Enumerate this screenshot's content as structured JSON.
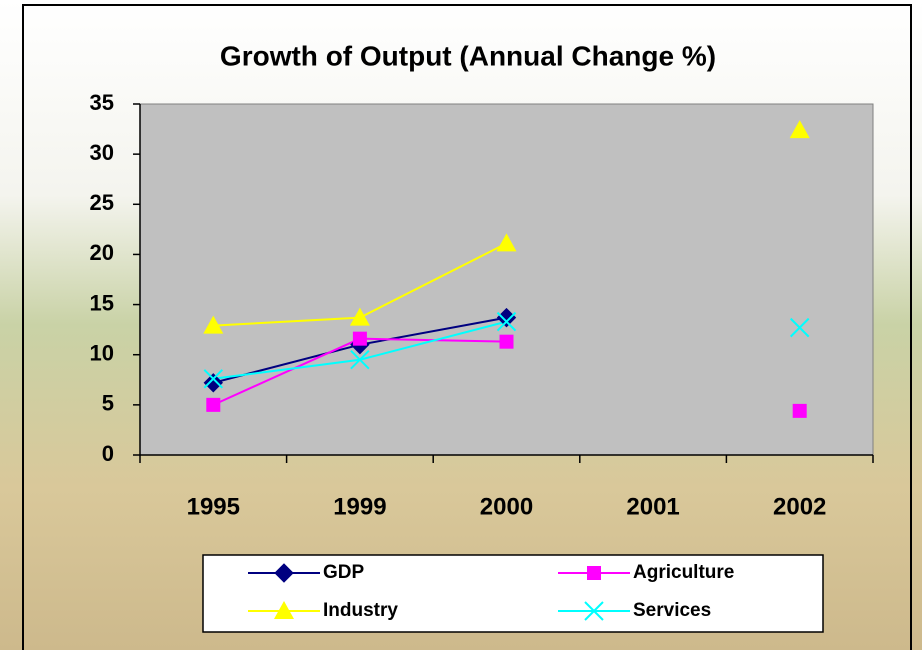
{
  "chart_data": {
    "type": "line",
    "title": "Growth of Output (Annual Change %)",
    "categories": [
      "1995",
      "1999",
      "2000",
      "2001",
      "2002"
    ],
    "series": [
      {
        "name": "GDP",
        "color": "#000080",
        "marker": "diamond",
        "values": [
          7.2,
          11,
          13.7,
          null,
          null
        ]
      },
      {
        "name": "Agriculture",
        "color": "#ff00ff",
        "marker": "square",
        "values": [
          5,
          11.6,
          11.3,
          null,
          4.4
        ]
      },
      {
        "name": "Industry",
        "color": "#ffff00",
        "marker": "triangle",
        "values": [
          12.9,
          13.7,
          21.1,
          null,
          32.4
        ]
      },
      {
        "name": "Services",
        "color": "#00ffff",
        "marker": "x",
        "values": [
          7.6,
          9.5,
          13.3,
          null,
          12.7
        ]
      }
    ],
    "ylim": [
      0,
      35
    ],
    "yticks": [
      0,
      5,
      10,
      15,
      20,
      25,
      30,
      35
    ],
    "grid": false,
    "legend": "bottom"
  }
}
